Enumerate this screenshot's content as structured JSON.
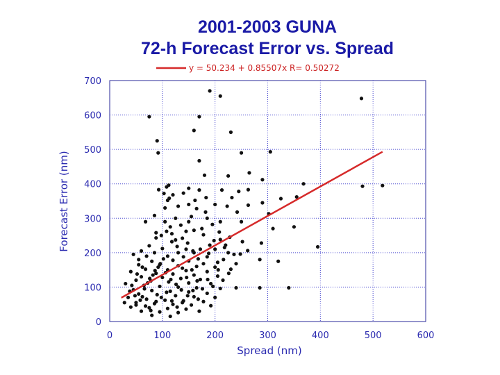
{
  "colors": {
    "title": "#1a1aa6",
    "axis_text": "#2a2ab0",
    "legend_text": "#cc2222",
    "fit_line": "#d62a2a",
    "points": "#111111",
    "grid": "#4a4ad0",
    "frame": "#2a2a9a"
  },
  "chart_data": {
    "type": "scatter",
    "title": [
      "2001-2003 GUNA",
      "72-h Forecast Error vs. Spread"
    ],
    "xlabel": "Spread (nm)",
    "ylabel": "Forecast Error (nm)",
    "xlim": [
      0,
      600
    ],
    "ylim": [
      0,
      700
    ],
    "xticks": [
      0,
      100,
      200,
      300,
      400,
      500,
      600
    ],
    "yticks": [
      0,
      100,
      200,
      300,
      400,
      500,
      600,
      700
    ],
    "grid": true,
    "legend": {
      "position": "top",
      "label": "y = 50.234 + 0.85507x  R= 0.50272"
    },
    "fit": {
      "intercept": 50.234,
      "slope": 0.85507,
      "r": 0.50272,
      "x_range": [
        22,
        518
      ]
    },
    "points": [
      [
        190,
        670
      ],
      [
        210,
        655
      ],
      [
        478,
        648
      ],
      [
        75,
        595
      ],
      [
        170,
        595
      ],
      [
        90,
        525
      ],
      [
        160,
        555
      ],
      [
        230,
        550
      ],
      [
        305,
        493
      ],
      [
        250,
        490
      ],
      [
        92,
        490
      ],
      [
        170,
        467
      ],
      [
        265,
        432
      ],
      [
        180,
        425
      ],
      [
        225,
        423
      ],
      [
        290,
        412
      ],
      [
        368,
        400
      ],
      [
        112,
        396
      ],
      [
        108,
        391
      ],
      [
        150,
        387
      ],
      [
        263,
        383
      ],
      [
        480,
        393
      ],
      [
        518,
        395
      ],
      [
        213,
        382
      ],
      [
        170,
        382
      ],
      [
        93,
        383
      ],
      [
        245,
        378
      ],
      [
        103,
        372
      ],
      [
        140,
        373
      ],
      [
        120,
        368
      ],
      [
        355,
        362
      ],
      [
        232,
        360
      ],
      [
        183,
        360
      ],
      [
        113,
        358
      ],
      [
        110,
        352
      ],
      [
        325,
        357
      ],
      [
        162,
        352
      ],
      [
        290,
        345
      ],
      [
        200,
        340
      ],
      [
        150,
        340
      ],
      [
        263,
        338
      ],
      [
        130,
        335
      ],
      [
        223,
        335
      ],
      [
        105,
        330
      ],
      [
        182,
        318
      ],
      [
        242,
        318
      ],
      [
        302,
        313
      ],
      [
        85,
        308
      ],
      [
        68,
        290
      ],
      [
        105,
        290
      ],
      [
        150,
        290
      ],
      [
        210,
        290
      ],
      [
        250,
        290
      ],
      [
        350,
        275
      ],
      [
        160,
        265
      ],
      [
        310,
        270
      ],
      [
        88,
        258
      ],
      [
        118,
        255
      ],
      [
        178,
        252
      ],
      [
        88,
        243
      ],
      [
        125,
        237
      ],
      [
        210,
        238
      ],
      [
        252,
        232
      ],
      [
        288,
        228
      ],
      [
        190,
        222
      ],
      [
        220,
        222
      ],
      [
        75,
        220
      ],
      [
        100,
        212
      ],
      [
        145,
        210
      ],
      [
        172,
        210
      ],
      [
        200,
        210
      ],
      [
        262,
        206
      ],
      [
        60,
        205
      ],
      [
        85,
        200
      ],
      [
        130,
        200
      ],
      [
        160,
        200
      ],
      [
        225,
        200
      ],
      [
        248,
        196
      ],
      [
        45,
        195
      ],
      [
        70,
        190
      ],
      [
        110,
        190
      ],
      [
        140,
        188
      ],
      [
        185,
        188
      ],
      [
        285,
        180
      ],
      [
        55,
        180
      ],
      [
        80,
        175
      ],
      [
        120,
        178
      ],
      [
        150,
        176
      ],
      [
        205,
        172
      ],
      [
        240,
        168
      ],
      [
        395,
        217
      ],
      [
        320,
        175
      ],
      [
        55,
        165
      ],
      [
        95,
        165
      ],
      [
        130,
        162
      ],
      [
        165,
        160
      ],
      [
        200,
        158
      ],
      [
        230,
        152
      ],
      [
        68,
        152
      ],
      [
        110,
        150
      ],
      [
        145,
        148
      ],
      [
        185,
        145
      ],
      [
        40,
        145
      ],
      [
        88,
        140
      ],
      [
        120,
        138
      ],
      [
        160,
        135
      ],
      [
        205,
        132
      ],
      [
        60,
        130
      ],
      [
        100,
        128
      ],
      [
        135,
        125
      ],
      [
        172,
        122
      ],
      [
        215,
        120
      ],
      [
        50,
        120
      ],
      [
        78,
        118
      ],
      [
        112,
        115
      ],
      [
        150,
        112
      ],
      [
        192,
        110
      ],
      [
        30,
        110
      ],
      [
        65,
        105
      ],
      [
        95,
        102
      ],
      [
        130,
        100
      ],
      [
        165,
        98
      ],
      [
        210,
        96
      ],
      [
        240,
        98
      ],
      [
        285,
        98
      ],
      [
        340,
        98
      ],
      [
        45,
        92
      ],
      [
        80,
        90
      ],
      [
        115,
        88
      ],
      [
        150,
        86
      ],
      [
        185,
        82
      ],
      [
        55,
        80
      ],
      [
        90,
        78
      ],
      [
        125,
        75
      ],
      [
        160,
        72
      ],
      [
        200,
        70
      ],
      [
        35,
        70
      ],
      [
        70,
        65
      ],
      [
        105,
        62
      ],
      [
        140,
        60
      ],
      [
        178,
        58
      ],
      [
        50,
        55
      ],
      [
        85,
        52
      ],
      [
        120,
        50
      ],
      [
        155,
        48
      ],
      [
        192,
        46
      ],
      [
        40,
        42
      ],
      [
        75,
        40
      ],
      [
        110,
        38
      ],
      [
        145,
        36
      ],
      [
        60,
        30
      ],
      [
        95,
        28
      ],
      [
        130,
        26
      ],
      [
        170,
        30
      ],
      [
        80,
        18
      ],
      [
        115,
        15
      ],
      [
        50,
        48
      ],
      [
        62,
        72
      ],
      [
        72,
        112
      ],
      [
        82,
        135
      ],
      [
        92,
        158
      ],
      [
        102,
        182
      ],
      [
        66,
        95
      ],
      [
        76,
        125
      ],
      [
        86,
        148
      ],
      [
        96,
        168
      ],
      [
        106,
        142
      ],
      [
        116,
        122
      ],
      [
        126,
        108
      ],
      [
        136,
        92
      ],
      [
        146,
        128
      ],
      [
        156,
        150
      ],
      [
        166,
        118
      ],
      [
        176,
        95
      ],
      [
        186,
        122
      ],
      [
        196,
        102
      ],
      [
        206,
        150
      ],
      [
        216,
        180
      ],
      [
        226,
        140
      ],
      [
        236,
        195
      ],
      [
        98,
        250
      ],
      [
        108,
        262
      ],
      [
        118,
        232
      ],
      [
        128,
        218
      ],
      [
        138,
        242
      ],
      [
        148,
        228
      ],
      [
        158,
        205
      ],
      [
        168,
        182
      ],
      [
        178,
        168
      ],
      [
        188,
        198
      ],
      [
        198,
        235
      ],
      [
        208,
        260
      ],
      [
        218,
        215
      ],
      [
        228,
        245
      ],
      [
        195,
        282
      ],
      [
        185,
        300
      ],
      [
        175,
        270
      ],
      [
        165,
        328
      ],
      [
        155,
        305
      ],
      [
        145,
        262
      ],
      [
        135,
        280
      ],
      [
        125,
        300
      ],
      [
        115,
        275
      ],
      [
        138,
        155
      ],
      [
        58,
        62
      ],
      [
        68,
        45
      ],
      [
        78,
        32
      ],
      [
        88,
        58
      ],
      [
        98,
        70
      ],
      [
        108,
        85
      ],
      [
        118,
        60
      ],
      [
        128,
        42
      ],
      [
        138,
        55
      ],
      [
        148,
        75
      ],
      [
        158,
        90
      ],
      [
        168,
        65
      ],
      [
        48,
        75
      ],
      [
        38,
        88
      ],
      [
        28,
        55
      ],
      [
        42,
        105
      ],
      [
        52,
        138
      ],
      [
        62,
        158
      ]
    ]
  }
}
